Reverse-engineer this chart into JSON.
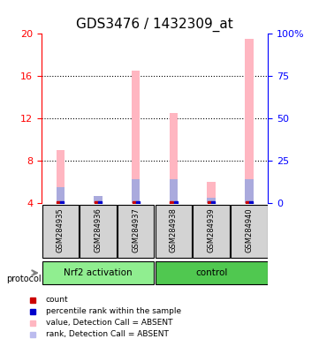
{
  "title": "GDS3476 / 1432309_at",
  "samples": [
    "GSM284935",
    "GSM284936",
    "GSM284937",
    "GSM284938",
    "GSM284939",
    "GSM284940"
  ],
  "group_labels": [
    "Nrf2 activation",
    "control"
  ],
  "group_colors": [
    "#90EE90",
    "#50C850"
  ],
  "ylim_left": [
    4,
    20
  ],
  "ylim_right": [
    0,
    100
  ],
  "yticks_left": [
    4,
    8,
    12,
    16,
    20
  ],
  "yticks_right": [
    0,
    25,
    50,
    75,
    100
  ],
  "ytick_labels_right": [
    "0",
    "25",
    "50",
    "75",
    "100%"
  ],
  "pink_bar_heights": [
    9.0,
    4.5,
    16.5,
    12.5,
    6.0,
    19.5
  ],
  "blue_bar_heights": [
    5.5,
    4.7,
    6.3,
    6.3,
    4.5,
    6.3
  ],
  "pink_bar_color": "#FFB6C1",
  "blue_bar_color": "#AAAADD",
  "red_square_color": "#CC0000",
  "blue_square_color": "#0000CC",
  "bar_base": 4.0,
  "sample_box_color": "#D3D3D3",
  "legend_items": [
    {
      "color": "#CC0000",
      "label": "count"
    },
    {
      "color": "#0000CC",
      "label": "percentile rank within the sample"
    },
    {
      "color": "#FFB6C1",
      "label": "value, Detection Call = ABSENT"
    },
    {
      "color": "#BBBBEE",
      "label": "rank, Detection Call = ABSENT"
    }
  ],
  "title_fontsize": 11,
  "tick_fontsize": 8
}
